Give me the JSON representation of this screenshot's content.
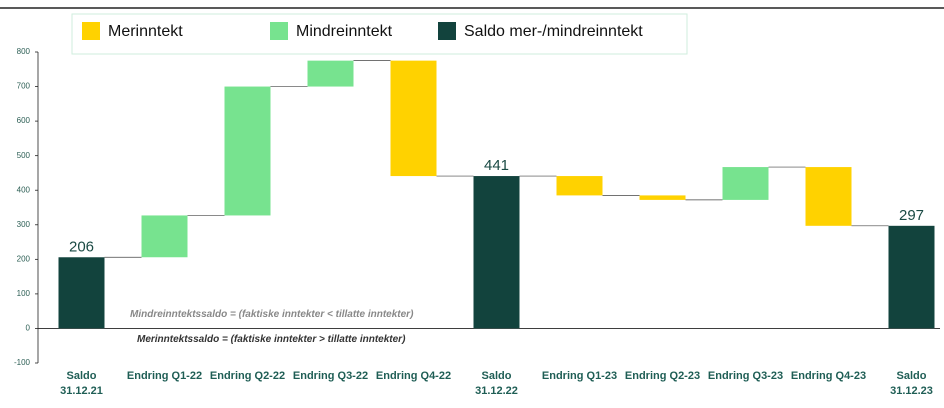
{
  "chart_data": {
    "type": "waterfall",
    "categories": [
      "Saldo\n31.12.21",
      "Endring Q1-22",
      "Endring Q2-22",
      "Endring Q3-22",
      "Endring Q4-22",
      "Saldo\n31.12.22",
      "Endring Q1-23",
      "Endring Q2-23",
      "Endring Q3-23",
      "Endring Q4-23",
      "Saldo\n31.12.23"
    ],
    "values": [
      206,
      121,
      373,
      75,
      -334,
      441,
      -56,
      -13,
      95,
      -170,
      297
    ],
    "is_total": [
      true,
      false,
      false,
      false,
      false,
      true,
      false,
      false,
      false,
      false,
      true
    ],
    "series": [
      {
        "name": "Merinntekt",
        "color": "#ffd200"
      },
      {
        "name": "Mindreinntekt",
        "color": "#77e38f"
      },
      {
        "name": "Saldo mer-/mindreinntekt",
        "color": "#12433d"
      }
    ],
    "ylim": [
      -100,
      800
    ],
    "yticks": [
      -100,
      0,
      100,
      200,
      300,
      400,
      500,
      600,
      700,
      800
    ],
    "annotations": [
      "Mindreinntektssaldo  = (faktiske inntekter < tillatte inntekter)",
      "Merinntektssaldo  = (faktiske inntekter > tillatte inntekter)"
    ]
  }
}
